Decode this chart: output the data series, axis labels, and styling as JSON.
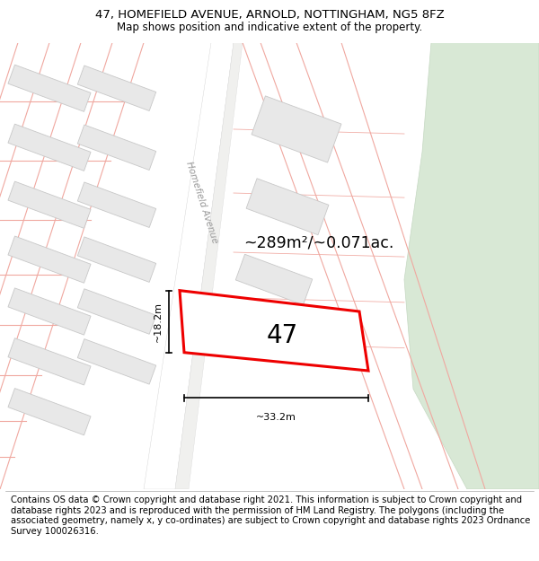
{
  "title_line1": "47, HOMEFIELD AVENUE, ARNOLD, NOTTINGHAM, NG5 8FZ",
  "title_line2": "Map shows position and indicative extent of the property.",
  "footer_text": "Contains OS data © Crown copyright and database right 2021. This information is subject to Crown copyright and database rights 2023 and is reproduced with the permission of HM Land Registry. The polygons (including the associated geometry, namely x, y co-ordinates) are subject to Crown copyright and database rights 2023 Ordnance Survey 100026316.",
  "area_label": "~289m²/~0.071ac.",
  "number_label": "47",
  "width_label": "~33.2m",
  "height_label": "~18.2m",
  "street_label": "Homefield Avenue",
  "map_bg": "#f7f7f5",
  "road_fill": "#ffffff",
  "building_fill": "#e8e8e8",
  "building_outline": "#c8c8c8",
  "plot_outline_color": "#ee0000",
  "plot_fill": "#ffffff",
  "cadastral_color": "#f0a8a0",
  "green_area_color": "#d8e8d5",
  "green_area_outline": "#c5d8c2",
  "title_fontsize": 9.5,
  "subtitle_fontsize": 8.5,
  "footer_fontsize": 7.2
}
